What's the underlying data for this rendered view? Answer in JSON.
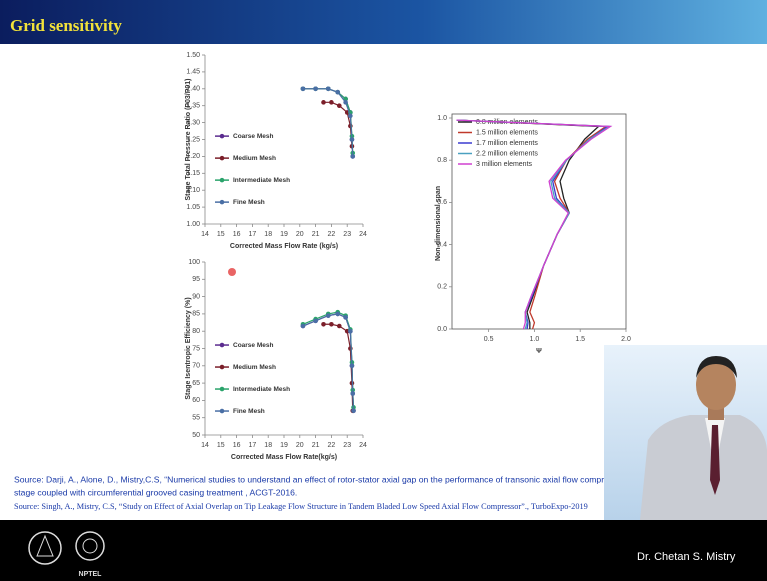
{
  "header": {
    "title": "Grid sensitivity"
  },
  "chart_data": [
    {
      "type": "line",
      "xlabel": "Corrected Mass Flow Rate (kg/s)",
      "ylabel": "Stage Total Pressure Ratio (P03/P01)",
      "xlim": [
        14,
        24
      ],
      "xticks": [
        14,
        15,
        16,
        17,
        18,
        19,
        20,
        21,
        22,
        23,
        24
      ],
      "ylim": [
        1.0,
        1.5
      ],
      "yticks": [
        {
          "value": 1.0,
          "label": "1.00"
        },
        1.05,
        {
          "value": 1.1,
          "label": "1.10"
        },
        1.15,
        {
          "value": 1.2,
          "label": "1.20"
        },
        1.25,
        {
          "value": 1.3,
          "label": "1.30"
        },
        1.35,
        {
          "value": 1.4,
          "label": "1.40"
        },
        1.45,
        {
          "value": 1.5,
          "label": "1.50"
        }
      ],
      "legend": "center left",
      "markers": true,
      "series": [
        {
          "name": "Coarse Mesh",
          "color": "#5b2c8f",
          "x": [
            20.2,
            21.0,
            21.8,
            22.4,
            22.9,
            23.2,
            23.3,
            23.35
          ],
          "values": [
            1.4,
            1.4,
            1.4,
            1.39,
            1.37,
            1.33,
            1.25,
            1.2
          ]
        },
        {
          "name": "Medium Mesh",
          "color": "#7b1f2a",
          "x": [
            21.5,
            22.0,
            22.5,
            23.0,
            23.2,
            23.3
          ],
          "values": [
            1.36,
            1.36,
            1.35,
            1.33,
            1.29,
            1.23
          ]
        },
        {
          "name": "Intermediate Mesh",
          "color": "#2aa36b",
          "x": [
            20.2,
            21.0,
            21.8,
            22.4,
            22.9,
            23.2,
            23.3,
            23.35
          ],
          "values": [
            1.4,
            1.4,
            1.4,
            1.39,
            1.37,
            1.33,
            1.26,
            1.21
          ]
        },
        {
          "name": "Fine Mesh",
          "color": "#4a6fa5",
          "x": [
            20.2,
            21.0,
            21.8,
            22.4,
            22.9,
            23.2,
            23.3,
            23.35
          ],
          "values": [
            1.4,
            1.4,
            1.4,
            1.39,
            1.36,
            1.32,
            1.25,
            1.2
          ]
        }
      ]
    },
    {
      "type": "line",
      "xlabel": "Corrected Mass Flow Rate(kg/s)",
      "ylabel": "Stage Isentropic Efficiency (%)",
      "xlim": [
        14,
        24
      ],
      "xticks": [
        14,
        15,
        16,
        17,
        18,
        19,
        20,
        21,
        22,
        23,
        24
      ],
      "ylim": [
        50,
        100
      ],
      "yticks": [
        50,
        55,
        60,
        65,
        70,
        75,
        80,
        85,
        90,
        95,
        100
      ],
      "legend": "center left",
      "markers": true,
      "series": [
        {
          "name": "Coarse Mesh",
          "color": "#5b2c8f",
          "x": [
            20.2,
            21.0,
            21.8,
            22.4,
            22.9,
            23.2,
            23.3,
            23.35,
            23.4
          ],
          "values": [
            81.5,
            83,
            84.5,
            85,
            84,
            80,
            70,
            62,
            57
          ]
        },
        {
          "name": "Medium Mesh",
          "color": "#7b1f2a",
          "x": [
            21.5,
            22.0,
            22.5,
            23.0,
            23.2,
            23.3,
            23.35
          ],
          "values": [
            82,
            82,
            81.5,
            80,
            75,
            65,
            57
          ]
        },
        {
          "name": "Intermediate Mesh",
          "color": "#2aa36b",
          "x": [
            20.2,
            21.0,
            21.8,
            22.4,
            22.9,
            23.2,
            23.3,
            23.35,
            23.4
          ],
          "values": [
            82,
            83.5,
            85,
            85.5,
            84.5,
            80.5,
            71,
            63,
            58
          ]
        },
        {
          "name": "Fine Mesh",
          "color": "#4a6fa5",
          "x": [
            20.2,
            21.0,
            21.8,
            22.4,
            22.9,
            23.2,
            23.3,
            23.35,
            23.4
          ],
          "values": [
            81.5,
            83,
            84.5,
            85,
            84,
            80,
            70,
            62,
            57
          ]
        }
      ]
    },
    {
      "type": "line",
      "xlabel": "Ψ",
      "ylabel": "Non-dimensional span",
      "xlim": [
        0.1,
        2.0
      ],
      "xticks": [
        0.5,
        {
          "value": 1.0,
          "label": "1.0"
        },
        1.5,
        {
          "value": 2.0,
          "label": "2.0"
        }
      ],
      "ylim": [
        0,
        1
      ],
      "yticks": [
        {
          "value": 0,
          "label": "0.0"
        },
        0.2,
        0.4,
        0.6,
        0.8,
        {
          "value": 1.0,
          "label": "1.0"
        }
      ],
      "legend": "upper left",
      "markers": false,
      "series": [
        {
          "name": "0.8 million elements",
          "color": "#222222",
          "x": [
            0.95,
            0.95,
            0.92,
            0.98,
            1.1,
            1.25,
            1.38,
            1.32,
            1.28,
            1.38,
            1.55,
            1.7,
            0.15
          ],
          "values": [
            0,
            0.03,
            0.08,
            0.15,
            0.3,
            0.45,
            0.55,
            0.62,
            0.7,
            0.8,
            0.9,
            0.96,
            0.99
          ]
        },
        {
          "name": "1.5 million elements",
          "color": "#c0392b",
          "x": [
            0.98,
            1.0,
            0.95,
            1.0,
            1.1,
            1.25,
            1.38,
            1.28,
            1.22,
            1.35,
            1.58,
            1.78,
            0.15
          ],
          "values": [
            0,
            0.03,
            0.08,
            0.15,
            0.3,
            0.45,
            0.55,
            0.62,
            0.7,
            0.8,
            0.9,
            0.96,
            0.99
          ]
        },
        {
          "name": "1.7 million elements",
          "color": "#3a3ad0",
          "x": [
            0.92,
            0.93,
            0.9,
            0.97,
            1.1,
            1.25,
            1.38,
            1.24,
            1.2,
            1.35,
            1.6,
            1.8,
            0.15
          ],
          "values": [
            0,
            0.03,
            0.08,
            0.15,
            0.3,
            0.45,
            0.55,
            0.62,
            0.7,
            0.8,
            0.9,
            0.96,
            0.99
          ]
        },
        {
          "name": "2.2 million elements",
          "color": "#4aa0c0",
          "x": [
            0.9,
            0.92,
            0.9,
            0.96,
            1.1,
            1.25,
            1.38,
            1.22,
            1.18,
            1.35,
            1.6,
            1.82,
            0.15
          ],
          "values": [
            0,
            0.03,
            0.08,
            0.15,
            0.3,
            0.45,
            0.55,
            0.62,
            0.7,
            0.8,
            0.9,
            0.96,
            0.99
          ]
        },
        {
          "name": "3 million elements",
          "color": "#d040d0",
          "x": [
            0.88,
            0.9,
            0.9,
            0.96,
            1.1,
            1.25,
            1.37,
            1.2,
            1.16,
            1.34,
            1.62,
            1.83,
            0.15
          ],
          "values": [
            0,
            0.03,
            0.08,
            0.15,
            0.3,
            0.45,
            0.55,
            0.62,
            0.7,
            0.8,
            0.9,
            0.96,
            0.99
          ]
        }
      ]
    }
  ],
  "sources": [
    "Source: Darji, A., Alone, D., Mistry,C.S, “Numerical studies to understand an effect of rotor-stator axial gap on the performance of transonic axial flow compressor",
    "stage coupled with circumferential grooved casing treatment , ACGT-2016.",
    "Source: Singh, A., Mistry, C.S, “Study on Effect of Axial Overlap on Tip Leakage Flow Structure in Tandem Bladed Low Speed Axial Flow Compressor”., TurboExpo-2019"
  ],
  "footer": {
    "logo_text": "NPTEL",
    "presenter": "Dr. Chetan S. Mistry"
  }
}
